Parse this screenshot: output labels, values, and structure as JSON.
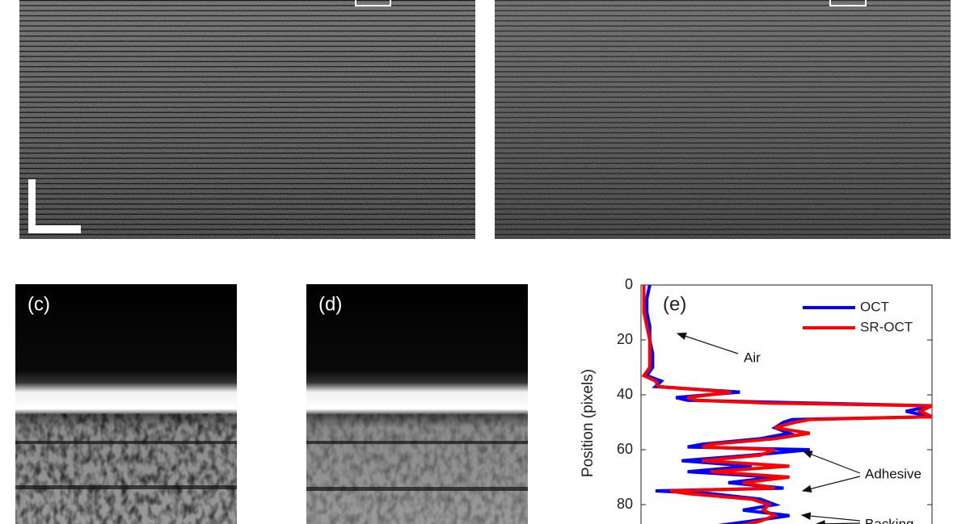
{
  "panels": {
    "c": "(c)",
    "d": "(d)"
  },
  "chart_data": {
    "type": "line",
    "label": "(e)",
    "y_label": "Position (pixels)",
    "y": [
      0,
      5,
      10,
      15,
      20,
      25,
      30,
      33,
      35,
      37,
      39,
      41,
      42,
      43,
      44,
      46,
      48,
      49,
      50,
      52,
      54,
      56,
      58,
      59,
      60,
      62,
      64,
      66,
      68,
      70,
      72,
      74,
      75,
      76,
      78,
      80,
      82,
      84,
      86,
      88
    ],
    "series": [
      {
        "name": "OCT",
        "color": "#0000ff",
        "values": [
          0.03,
          0.02,
          0.02,
          0.03,
          0.03,
          0.04,
          0.04,
          0.02,
          0.07,
          0.05,
          0.34,
          0.12,
          0.16,
          0.58,
          1.0,
          0.91,
          1.0,
          0.52,
          0.49,
          0.46,
          0.51,
          0.41,
          0.21,
          0.16,
          0.58,
          0.38,
          0.14,
          0.38,
          0.16,
          0.46,
          0.3,
          0.49,
          0.05,
          0.24,
          0.41,
          0.46,
          0.35,
          0.51,
          0.38,
          0.24
        ]
      },
      {
        "name": "SR-OCT",
        "color": "#ff0000",
        "values": [
          0.01,
          0.01,
          0.01,
          0.02,
          0.03,
          0.03,
          0.03,
          0.01,
          0.05,
          0.06,
          0.31,
          0.16,
          0.19,
          0.44,
          1.0,
          0.96,
          1.0,
          0.58,
          0.53,
          0.46,
          0.58,
          0.46,
          0.24,
          0.21,
          0.46,
          0.41,
          0.21,
          0.51,
          0.24,
          0.51,
          0.35,
          0.46,
          0.1,
          0.16,
          0.38,
          0.44,
          0.42,
          0.46,
          0.41,
          0.33
        ]
      }
    ],
    "xlim": [
      0,
      1
    ],
    "ylim": [
      0,
      88
    ],
    "yticks": [
      0,
      20,
      40,
      60,
      80
    ],
    "y_inverted": true,
    "legend": "top-right",
    "annotations": [
      "Air",
      "Adhesive",
      "Backing"
    ]
  }
}
